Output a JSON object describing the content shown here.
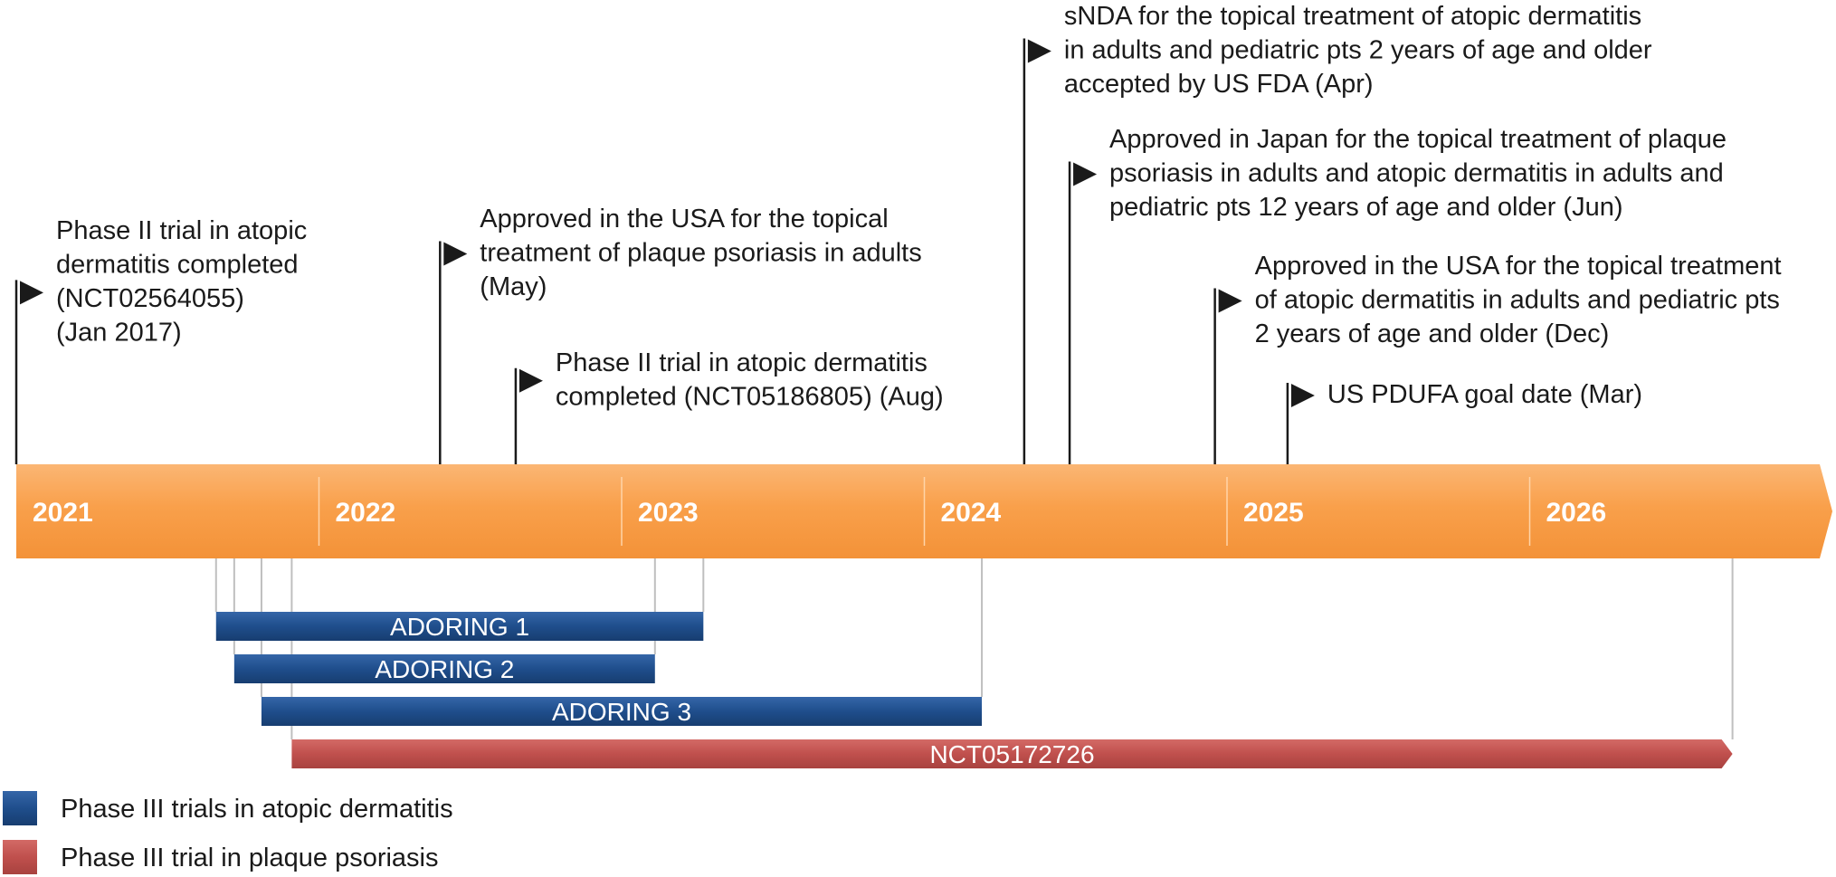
{
  "colors": {
    "axis_band": "#F9A04B",
    "axis_band_light": "#FBB674",
    "axis_divider": "#FFD4A8",
    "atopic_trial": "#1F4E8C",
    "psoriasis_trial": "#C0504D",
    "text": "#1a1a1a",
    "flag_pole": "#1a1a1a",
    "guide_line": "#BFBFBF"
  },
  "axis": {
    "start_year": 2021,
    "end_year": 2027,
    "years": [
      "2021",
      "2022",
      "2023",
      "2024",
      "2025",
      "2026"
    ]
  },
  "events": [
    {
      "id": "phase2-ad-2017",
      "date": 2021.0,
      "lines": [
        "Phase II trial in atopic",
        "dermatitis completed",
        "(NCT02564055)",
        "(Jan 2017)"
      ]
    },
    {
      "id": "usa-psoriasis-may",
      "date": 2022.4,
      "lines": [
        "Approved in the USA for the topical",
        "treatment of plaque psoriasis in adults",
        "(May)"
      ]
    },
    {
      "id": "phase2-ad-aug",
      "date": 2022.65,
      "lines": [
        "Phase II trial in atopic dermatitis",
        "completed (NCT05186805) (Aug)"
      ]
    },
    {
      "id": "snda-apr",
      "date": 2024.33,
      "lines": [
        "sNDA for the topical treatment of atopic dermatitis",
        "in adults and pediatric pts 2 years of age and older",
        "accepted by US FDA (Apr)"
      ]
    },
    {
      "id": "japan-jun",
      "date": 2024.48,
      "lines": [
        "Approved in Japan for the topical treatment of plaque",
        "psoriasis in adults and atopic dermatitis in adults and",
        "pediatric pts 12 years of age and older (Jun)"
      ]
    },
    {
      "id": "usa-ad-dec",
      "date": 2024.96,
      "lines": [
        "Approved in the USA for the topical treatment",
        "of atopic dermatitis in adults and pediatric pts",
        "2 years of age and older (Dec)"
      ]
    },
    {
      "id": "pdufa-mar",
      "date": 2025.2,
      "lines": [
        "US PDUFA goal date (Mar)"
      ]
    }
  ],
  "trials": [
    {
      "name": "ADORING 1",
      "type": "atopic",
      "start": 2021.66,
      "end": 2023.27
    },
    {
      "name": "ADORING 2",
      "type": "atopic",
      "start": 2021.72,
      "end": 2023.11
    },
    {
      "name": "ADORING 3",
      "type": "atopic",
      "start": 2021.81,
      "end": 2024.19
    },
    {
      "name": "NCT05172726",
      "type": "psoriasis",
      "start": 2021.91,
      "end": 2026.67
    }
  ],
  "legend": [
    {
      "label": "Phase III trials in atopic dermatitis",
      "type": "atopic"
    },
    {
      "label": "Phase III trial in plaque psoriasis",
      "type": "psoriasis"
    }
  ]
}
